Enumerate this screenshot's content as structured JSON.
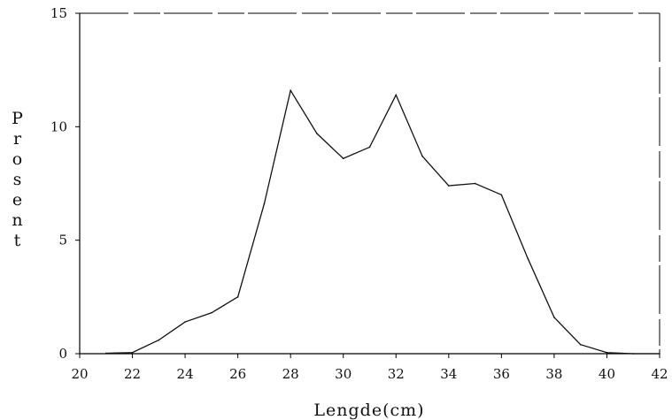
{
  "chart_data": {
    "type": "line",
    "title": "",
    "xlabel": "Lengde(cm)",
    "ylabel": "Prosent",
    "ylabel_letters": [
      "P",
      "r",
      "o",
      "s",
      "e",
      "n",
      "t"
    ],
    "xlim": [
      20,
      42
    ],
    "ylim": [
      0,
      15
    ],
    "xticks": [
      "20",
      "22",
      "24",
      "26",
      "28",
      "30",
      "32",
      "34",
      "36",
      "38",
      "40",
      "42"
    ],
    "yticks": [
      "0",
      "5",
      "10",
      "15"
    ],
    "grid": false,
    "series": [
      {
        "x": [
          21,
          22,
          23,
          24,
          25,
          26,
          27,
          28,
          29,
          30,
          31,
          32,
          33,
          34,
          35,
          36,
          37,
          38,
          39,
          40,
          41,
          42
        ],
        "y": [
          0.02,
          0.05,
          0.6,
          1.4,
          1.8,
          2.5,
          6.6,
          11.6,
          9.7,
          8.6,
          9.1,
          11.4,
          8.7,
          7.4,
          7.5,
          7.0,
          4.2,
          1.6,
          0.4,
          0.05,
          0.0,
          0.0
        ]
      }
    ]
  }
}
